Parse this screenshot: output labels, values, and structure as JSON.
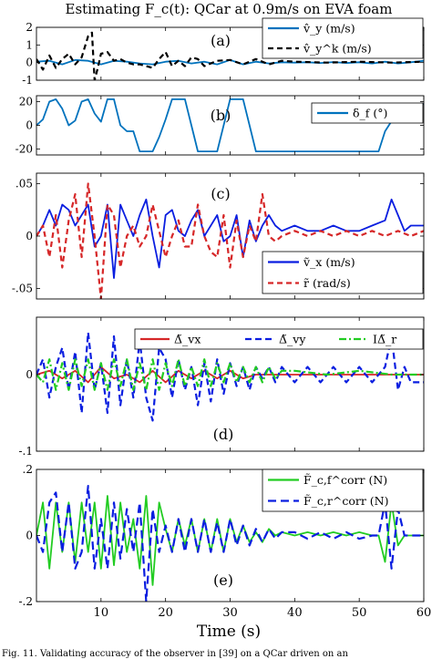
{
  "figure": {
    "title": "Estimating F_c(t): QCar at 0.9m/s on EVA foam",
    "xlabel": "Time (s)",
    "caption": "Fig. 11.  Validating accuracy of the observer in [39] on a QCar driven on an"
  },
  "colors": {
    "blue": "#0072bd",
    "black": "#000000",
    "red": "#d62728",
    "navy": "#0a1ee0",
    "green": "#22cc22"
  },
  "chart_data": [
    {
      "type": "line",
      "panel_label": "(a)",
      "xlim": [
        0,
        60
      ],
      "ylim": [
        -1,
        2
      ],
      "yticks": [
        -1,
        0,
        1,
        2
      ],
      "xticks": [
        10,
        20,
        30,
        40,
        50,
        60
      ],
      "show_xticklabels": false,
      "legend": "top-right",
      "series": [
        {
          "name": "v̂_y (m/s)",
          "color": "#0072bd",
          "dash": "none",
          "x": [
            0,
            2,
            4,
            6,
            8,
            10,
            12,
            14,
            16,
            18,
            20,
            22,
            24,
            26,
            28,
            30,
            32,
            34,
            36,
            38,
            40,
            42,
            44,
            46,
            48,
            50,
            52,
            54,
            56,
            58,
            60
          ],
          "y": [
            0.05,
            0.1,
            -0.1,
            0.15,
            0.1,
            -0.1,
            0.1,
            0.05,
            -0.05,
            -0.1,
            0.05,
            0.1,
            -0.05,
            0.05,
            -0.1,
            0.15,
            -0.1,
            0.05,
            -0.05,
            0.02,
            0.0,
            0.02,
            -0.02,
            0.03,
            -0.02,
            0.02,
            -0.05,
            0.05,
            -0.05,
            0.02,
            0.1
          ]
        },
        {
          "name": "v̂_y^k (m/s)",
          "color": "#000000",
          "dash": "6,4",
          "x": [
            0,
            1,
            2,
            3,
            4,
            5,
            6,
            7,
            8,
            8.6,
            9,
            9.5,
            10,
            11,
            12,
            13,
            14,
            15,
            16,
            17,
            18,
            19,
            20,
            21,
            22,
            23,
            24,
            25,
            26,
            28,
            30,
            32,
            34,
            36,
            38,
            40,
            45,
            50,
            55,
            60
          ],
          "y": [
            0.2,
            -0.4,
            0.4,
            -0.3,
            0.2,
            0.5,
            -0.1,
            0.3,
            1.5,
            1.7,
            -1.0,
            -0.3,
            0.5,
            0.6,
            0.1,
            0.2,
            0.0,
            -0.1,
            -0.1,
            -0.2,
            -0.3,
            0.2,
            0.6,
            -0.2,
            0.1,
            -0.2,
            0.3,
            0.2,
            -0.2,
            0.1,
            0.15,
            -0.1,
            0.2,
            -0.1,
            0.1,
            0.05,
            0.0,
            0.05,
            0.0,
            0.05
          ]
        }
      ]
    },
    {
      "type": "line",
      "panel_label": "(b)",
      "xlim": [
        0,
        60
      ],
      "ylim": [
        -25,
        25
      ],
      "yticks": [
        -20,
        0,
        20
      ],
      "xticks": [
        10,
        20,
        30,
        40,
        50,
        60
      ],
      "show_xticklabels": false,
      "legend": "right",
      "series": [
        {
          "name": "δ_f (°)",
          "color": "#0072bd",
          "dash": "none",
          "x": [
            0,
            1,
            2,
            3,
            4,
            5,
            6,
            7,
            8,
            9,
            10,
            11,
            12,
            13,
            14,
            15,
            16,
            17,
            18,
            19,
            20,
            21,
            22,
            23,
            24,
            25,
            26,
            27,
            28,
            29,
            30,
            31,
            32,
            33,
            34,
            35,
            36,
            37,
            38,
            40,
            42,
            44,
            46,
            48,
            50,
            52,
            53,
            54,
            56,
            58,
            60
          ],
          "y": [
            0,
            5,
            20,
            22,
            14,
            0,
            4,
            20,
            22,
            10,
            3,
            22,
            22,
            0,
            -5,
            -5,
            -22,
            -22,
            -22,
            -10,
            5,
            22,
            22,
            22,
            0,
            -22,
            -22,
            -22,
            -22,
            0,
            22,
            22,
            22,
            0,
            -22,
            -22,
            -22,
            -22,
            -22,
            -22,
            -22,
            -22,
            -22,
            -22,
            -22,
            -22,
            -22,
            -5,
            12,
            15,
            18
          ]
        }
      ]
    },
    {
      "type": "line",
      "panel_label": "(c)",
      "xlim": [
        0,
        60
      ],
      "ylim": [
        -0.06,
        0.06
      ],
      "yticks": [
        -0.05,
        0,
        0.05
      ],
      "xticks": [
        10,
        20,
        30,
        40,
        50,
        60
      ],
      "show_xticklabels": false,
      "legend": "bottom-right",
      "series": [
        {
          "name": "ṽ_x (m/s)",
          "color": "#0a1ee0",
          "dash": "none",
          "x": [
            0,
            1,
            2,
            3,
            4,
            5,
            6,
            7,
            8,
            9,
            10,
            11,
            12,
            13,
            14,
            15,
            16,
            17,
            18,
            19,
            20,
            21,
            22,
            23,
            24,
            25,
            26,
            27,
            28,
            29,
            30,
            31,
            32,
            33,
            34,
            35,
            36,
            37,
            38,
            40,
            42,
            44,
            46,
            48,
            50,
            52,
            54,
            55,
            56,
            57,
            58,
            60
          ],
          "y": [
            0,
            0.01,
            0.025,
            0.01,
            0.03,
            0.025,
            0.01,
            0.02,
            0.03,
            -0.01,
            0.0,
            0.03,
            -0.04,
            0.03,
            0.015,
            0.0,
            0.02,
            0.035,
            0.0,
            -0.03,
            0.02,
            0.025,
            0.005,
            0.0,
            0.015,
            0.025,
            0.0,
            0.01,
            0.02,
            -0.005,
            0.0,
            0.02,
            -0.02,
            0.015,
            -0.005,
            0.01,
            0.02,
            0.01,
            0.005,
            0.01,
            0.005,
            0.005,
            0.01,
            0.005,
            0.005,
            0.01,
            0.015,
            0.035,
            0.02,
            0.005,
            0.01,
            0.01
          ]
        },
        {
          "name": "r̃ (rad/s)",
          "color": "#d62728",
          "dash": "6,4",
          "x": [
            0,
            1,
            2,
            3,
            4,
            5,
            6,
            7,
            8,
            9,
            10,
            11,
            12,
            13,
            14,
            15,
            16,
            17,
            18,
            19,
            20,
            21,
            22,
            23,
            24,
            25,
            26,
            27,
            28,
            29,
            30,
            31,
            32,
            33,
            34,
            35,
            36,
            37,
            38,
            40,
            42,
            44,
            46,
            48,
            50,
            52,
            54,
            56,
            58,
            60
          ],
          "y": [
            0,
            0.01,
            -0.02,
            0.02,
            -0.03,
            0.015,
            0.04,
            -0.02,
            0.05,
            0.0,
            -0.06,
            0.03,
            0.02,
            -0.03,
            0.0,
            0.01,
            -0.01,
            0.0,
            0.03,
            0.005,
            -0.02,
            0.0,
            0.015,
            -0.01,
            -0.01,
            0.03,
            0.0,
            -0.015,
            -0.02,
            0.02,
            -0.03,
            0.015,
            -0.02,
            0.01,
            -0.005,
            0.04,
            0.0,
            -0.005,
            0.0,
            0.005,
            0.0,
            0.005,
            0.0,
            0.005,
            0.0,
            0.005,
            0.0,
            0.005,
            0.0,
            0.005
          ]
        }
      ]
    },
    {
      "type": "line",
      "panel_label": "(d)",
      "xlim": [
        0,
        60
      ],
      "ylim": [
        -0.1,
        0.075
      ],
      "yticks": [
        -0.1,
        0
      ],
      "xticks": [
        10,
        20,
        30,
        40,
        50,
        60
      ],
      "show_xticklabels": false,
      "legend": "top",
      "series": [
        {
          "name": "Δ̃_vx",
          "color": "#d62728",
          "dash": "none",
          "x": [
            0,
            2,
            4,
            6,
            8,
            10,
            12,
            14,
            16,
            18,
            20,
            22,
            24,
            26,
            28,
            30,
            32,
            34,
            36,
            38,
            40,
            45,
            50,
            55,
            60
          ],
          "y": [
            0.0,
            0.005,
            -0.005,
            0.005,
            -0.01,
            0.01,
            -0.005,
            0.0,
            -0.01,
            0.005,
            -0.01,
            0.005,
            -0.005,
            0.005,
            -0.005,
            0.005,
            -0.005,
            0.0,
            0.0,
            0.0,
            0.0,
            0.0,
            0.0,
            0.0,
            0.0
          ]
        },
        {
          "name": "Δ̃_vy",
          "color": "#0a1ee0",
          "dash": "7,4",
          "x": [
            0,
            1,
            2,
            3,
            4,
            5,
            6,
            7,
            8,
            9,
            10,
            11,
            12,
            13,
            14,
            15,
            16,
            17,
            18,
            19,
            20,
            21,
            22,
            23,
            24,
            25,
            26,
            27,
            28,
            29,
            30,
            31,
            32,
            33,
            34,
            35,
            36,
            37,
            38,
            40,
            42,
            44,
            46,
            48,
            50,
            52,
            53,
            54,
            55,
            56,
            57,
            58,
            60
          ],
          "y": [
            0.0,
            0.02,
            -0.03,
            0.01,
            0.035,
            -0.02,
            0.03,
            -0.05,
            0.055,
            -0.02,
            0.015,
            -0.05,
            0.05,
            -0.04,
            0.02,
            -0.03,
            0.045,
            -0.03,
            -0.06,
            0.035,
            0.02,
            -0.03,
            0.02,
            -0.02,
            0.01,
            -0.04,
            0.015,
            -0.035,
            0.02,
            -0.025,
            0.015,
            -0.015,
            0.01,
            -0.02,
            0.01,
            -0.005,
            0.01,
            -0.01,
            0.01,
            -0.01,
            0.01,
            -0.01,
            0.01,
            -0.01,
            0.01,
            -0.01,
            0.0,
            0.01,
            0.05,
            -0.02,
            0.01,
            -0.01,
            -0.01
          ]
        },
        {
          "name": "IΔ̃_r",
          "color": "#22cc22",
          "dash": "8,3,2,3",
          "x": [
            0,
            1,
            2,
            3,
            4,
            5,
            6,
            7,
            8,
            9,
            10,
            11,
            12,
            13,
            14,
            15,
            16,
            17,
            18,
            19,
            20,
            21,
            22,
            23,
            24,
            25,
            26,
            27,
            28,
            29,
            30,
            31,
            32,
            33,
            34,
            35,
            36,
            37,
            38,
            40,
            45,
            50,
            55,
            60
          ],
          "y": [
            0.0,
            -0.01,
            0.02,
            -0.02,
            0.015,
            -0.02,
            0.02,
            -0.015,
            0.02,
            -0.02,
            0.015,
            -0.02,
            0.02,
            -0.015,
            0.02,
            -0.02,
            0.015,
            -0.02,
            0.02,
            -0.02,
            0.015,
            -0.015,
            0.02,
            -0.015,
            0.01,
            -0.015,
            0.02,
            -0.015,
            0.015,
            -0.01,
            0.015,
            -0.01,
            0.01,
            -0.01,
            0.01,
            -0.01,
            0.01,
            -0.005,
            0.005,
            0.005,
            0.0,
            0.005,
            0.0,
            0.0
          ]
        }
      ]
    },
    {
      "type": "line",
      "panel_label": "(e)",
      "xlim": [
        0,
        60
      ],
      "ylim": [
        -0.2,
        0.2
      ],
      "yticks": [
        -0.2,
        0,
        0.2
      ],
      "xticks": [
        10,
        20,
        30,
        40,
        50,
        60
      ],
      "show_xticklabels": true,
      "legend": "top-right",
      "series": [
        {
          "name": "F̃_c,f^corr (N)",
          "color": "#22cc22",
          "dash": "none",
          "x": [
            0,
            1,
            2,
            3,
            4,
            5,
            6,
            7,
            8,
            9,
            10,
            11,
            12,
            13,
            14,
            15,
            16,
            17,
            18,
            19,
            20,
            21,
            22,
            23,
            24,
            25,
            26,
            27,
            28,
            29,
            30,
            31,
            32,
            33,
            34,
            35,
            36,
            37,
            38,
            40,
            42,
            44,
            46,
            48,
            50,
            52,
            53,
            54,
            55,
            56,
            57,
            58,
            60
          ],
          "y": [
            0.0,
            0.1,
            -0.1,
            0.1,
            -0.05,
            0.1,
            -0.08,
            0.1,
            -0.05,
            0.1,
            -0.1,
            0.12,
            -0.09,
            0.1,
            -0.05,
            0.05,
            -0.1,
            0.12,
            -0.15,
            0.1,
            0.02,
            -0.05,
            0.05,
            -0.03,
            0.05,
            -0.05,
            0.05,
            -0.05,
            0.05,
            -0.05,
            0.05,
            -0.02,
            0.03,
            -0.02,
            0.01,
            -0.02,
            0.02,
            0.0,
            0.01,
            0.0,
            0.01,
            0.0,
            0.01,
            0.0,
            0.01,
            0.0,
            0.0,
            -0.08,
            0.1,
            -0.03,
            0.0,
            0.0,
            0.0
          ]
        },
        {
          "name": "F̃_c,r^corr (N)",
          "color": "#0a1ee0",
          "dash": "9,5",
          "x": [
            0,
            1,
            2,
            3,
            4,
            5,
            6,
            7,
            8,
            9,
            10,
            11,
            12,
            13,
            14,
            15,
            16,
            17,
            18,
            19,
            20,
            21,
            22,
            23,
            24,
            25,
            26,
            27,
            28,
            29,
            30,
            31,
            32,
            33,
            34,
            35,
            36,
            37,
            38,
            40,
            42,
            44,
            46,
            48,
            50,
            52,
            53,
            54,
            55,
            56,
            57,
            58,
            60
          ],
          "y": [
            0.0,
            -0.05,
            0.1,
            0.13,
            -0.05,
            0.1,
            -0.1,
            -0.05,
            0.15,
            -0.1,
            0.05,
            -0.1,
            0.1,
            -0.07,
            0.08,
            -0.05,
            0.1,
            -0.2,
            0.08,
            -0.05,
            0.03,
            -0.05,
            0.05,
            -0.05,
            0.05,
            -0.05,
            0.05,
            -0.05,
            0.04,
            -0.05,
            0.05,
            -0.03,
            0.03,
            -0.03,
            0.02,
            -0.02,
            0.02,
            -0.01,
            0.01,
            0.01,
            -0.01,
            0.01,
            -0.01,
            0.01,
            -0.01,
            0.0,
            0.0,
            0.1,
            -0.1,
            0.08,
            0.0,
            0.0,
            0.0
          ]
        }
      ]
    }
  ]
}
